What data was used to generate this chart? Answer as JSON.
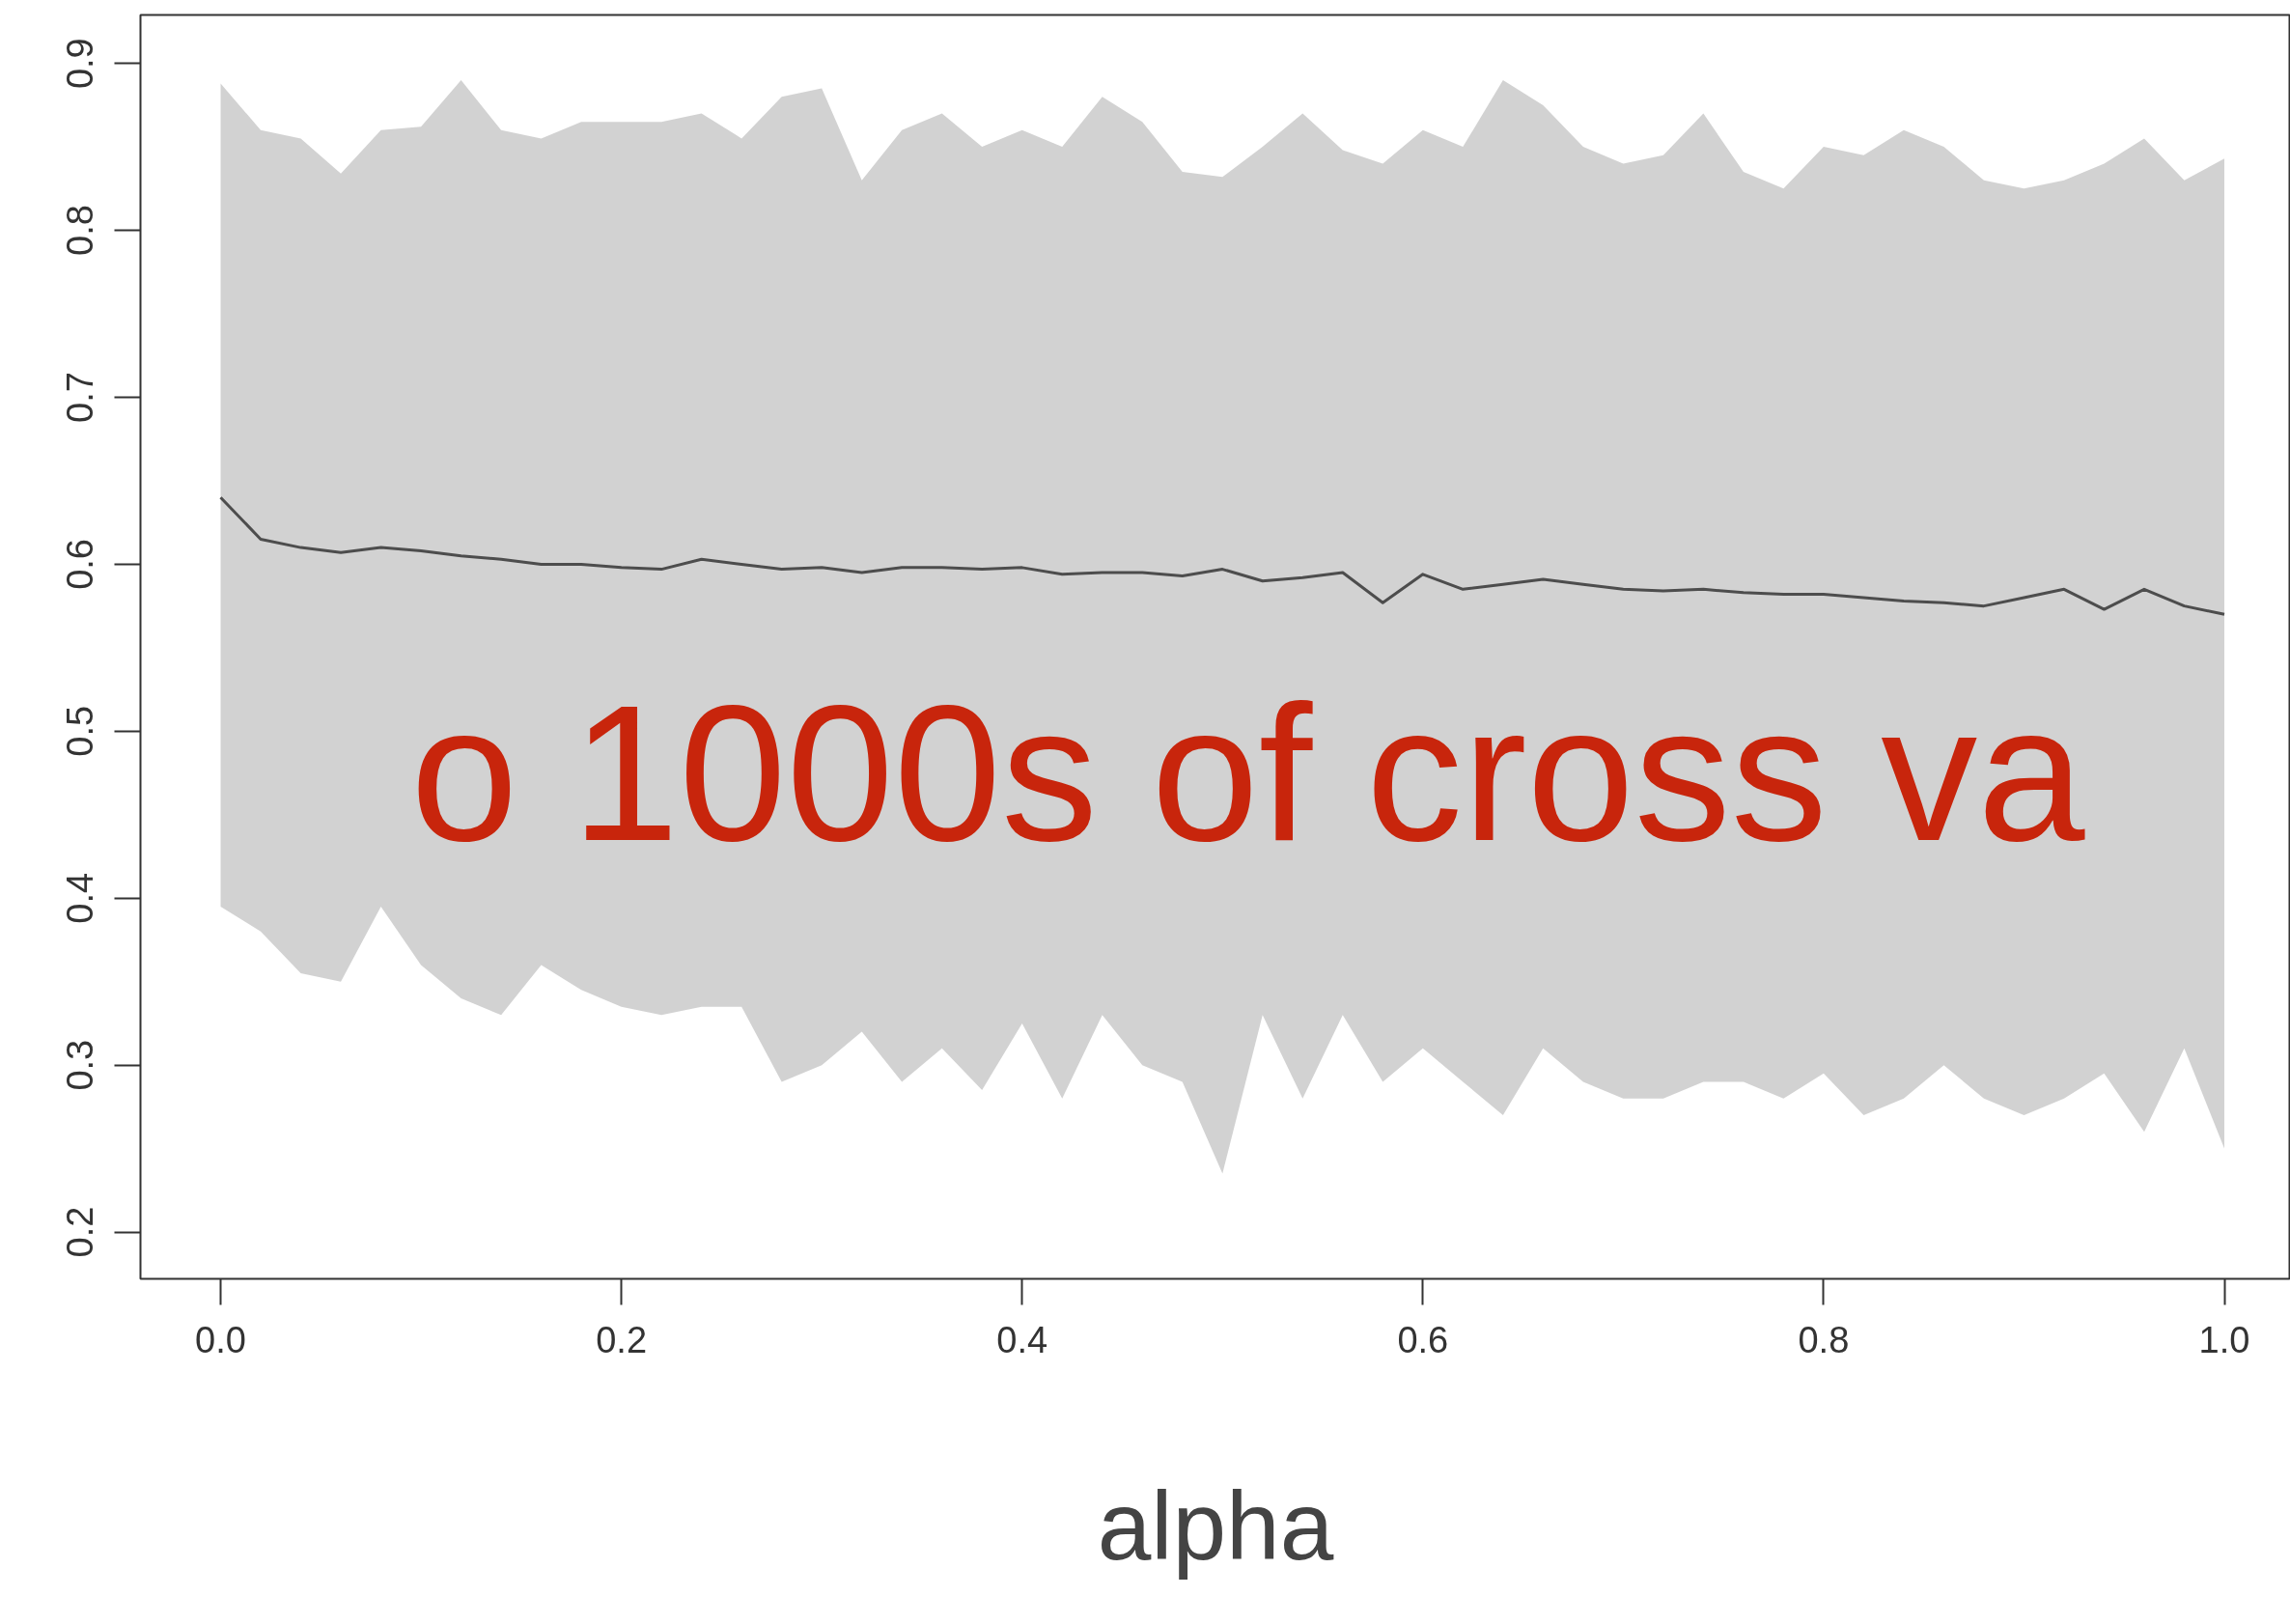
{
  "chart_data": {
    "type": "line",
    "xlabel": "alpha",
    "annotations": [
      "o 1000s of cross va"
    ],
    "x": [
      0,
      0.02,
      0.04,
      0.06,
      0.08,
      0.1,
      0.12,
      0.14,
      0.16,
      0.18,
      0.2,
      0.22,
      0.24,
      0.26,
      0.28,
      0.3,
      0.32,
      0.34,
      0.36,
      0.38,
      0.4,
      0.42,
      0.44,
      0.46,
      0.48,
      0.5,
      0.52,
      0.54,
      0.56,
      0.58,
      0.6,
      0.62,
      0.64,
      0.66,
      0.68,
      0.7,
      0.72,
      0.74,
      0.76,
      0.78,
      0.8,
      0.82,
      0.84,
      0.86,
      0.88,
      0.9,
      0.92,
      0.94,
      0.96,
      0.98,
      1.0
    ],
    "series": [
      {
        "color": "#4d4d4d",
        "values": [
          0.64,
          0.615,
          0.61,
          0.607,
          0.61,
          0.608,
          0.605,
          0.603,
          0.6,
          0.6,
          0.598,
          0.597,
          0.603,
          0.6,
          0.597,
          0.598,
          0.595,
          0.598,
          0.598,
          0.597,
          0.598,
          0.594,
          0.595,
          0.595,
          0.593,
          0.597,
          0.59,
          0.592,
          0.595,
          0.577,
          0.594,
          0.585,
          0.588,
          0.591,
          0.588,
          0.585,
          0.584,
          0.585,
          0.583,
          0.582,
          0.582,
          0.58,
          0.578,
          0.577,
          0.575,
          0.58,
          0.585,
          0.573,
          0.585,
          0.575,
          0.57
        ],
        "upper": [
          0.888,
          0.86,
          0.855,
          0.834,
          0.86,
          0.862,
          0.89,
          0.86,
          0.855,
          0.865,
          0.865,
          0.865,
          0.87,
          0.855,
          0.88,
          0.885,
          0.83,
          0.86,
          0.87,
          0.85,
          0.86,
          0.85,
          0.88,
          0.865,
          0.835,
          0.832,
          0.85,
          0.87,
          0.848,
          0.84,
          0.86,
          0.85,
          0.89,
          0.875,
          0.85,
          0.84,
          0.845,
          0.87,
          0.835,
          0.825,
          0.85,
          0.845,
          0.86,
          0.85,
          0.83,
          0.825,
          0.83,
          0.84,
          0.855,
          0.83,
          0.843
        ],
        "lower": [
          0.395,
          0.38,
          0.355,
          0.35,
          0.395,
          0.36,
          0.34,
          0.33,
          0.36,
          0.345,
          0.335,
          0.33,
          0.335,
          0.335,
          0.29,
          0.3,
          0.32,
          0.29,
          0.31,
          0.285,
          0.325,
          0.28,
          0.33,
          0.3,
          0.29,
          0.235,
          0.33,
          0.28,
          0.33,
          0.29,
          0.31,
          0.29,
          0.27,
          0.31,
          0.29,
          0.28,
          0.28,
          0.29,
          0.29,
          0.28,
          0.295,
          0.27,
          0.28,
          0.3,
          0.28,
          0.27,
          0.28,
          0.295,
          0.26,
          0.31,
          0.25
        ]
      }
    ],
    "xlim": [
      -0.04,
      1.033
    ],
    "ylim": [
      0.172,
      0.929
    ],
    "xticks": [
      {
        "value": 0,
        "label": "0.0"
      },
      0.2,
      0.4,
      0.6,
      0.8,
      {
        "value": 1,
        "label": "1.0"
      }
    ],
    "yticks": [
      0.2,
      0.3,
      0.4,
      0.5,
      0.6,
      0.7,
      0.8,
      0.9
    ]
  }
}
